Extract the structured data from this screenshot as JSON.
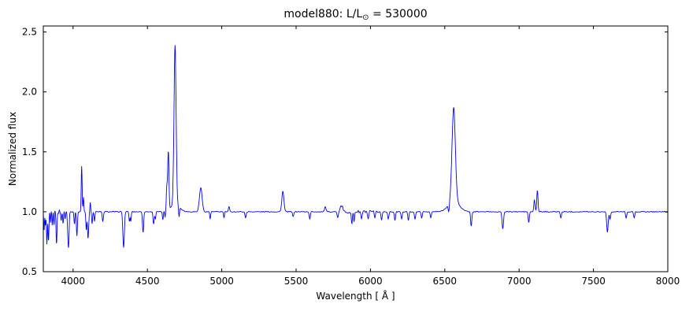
{
  "figure": {
    "title": {
      "prefix": "model880: L/L",
      "sub": "⊙",
      "suffix": " = 530000"
    },
    "background_color": "#ffffff",
    "frame_color": "#000000"
  },
  "chart_data": {
    "type": "line",
    "title": "model880: L/L⊙ = 530000",
    "xlabel": "Wavelength [ Å ]",
    "ylabel": "Normalized flux",
    "xlim": [
      3800,
      8000
    ],
    "ylim": [
      0.5,
      2.55
    ],
    "xticks": [
      "4000",
      "4500",
      "5000",
      "5500",
      "6000",
      "6500",
      "7000",
      "7500",
      "8000"
    ],
    "yticks": [
      "0.5",
      "1.0",
      "1.5",
      "2.0",
      "2.5"
    ],
    "grid": false,
    "legend": null,
    "series_color": "#0000ff",
    "continuum_level": 1.0,
    "sample_step_A": 2,
    "line_features": {
      "columns": [
        "center_A",
        "peak_delta_flux",
        "sigma_A"
      ],
      "rows": [
        [
          3805,
          -0.15,
          2.5
        ],
        [
          3814,
          -0.12,
          2.5
        ],
        [
          3824,
          -0.28,
          3
        ],
        [
          3835,
          -0.26,
          3
        ],
        [
          3848,
          -0.1,
          2.5
        ],
        [
          3860,
          -0.12,
          2.5
        ],
        [
          3872,
          -0.1,
          2.5
        ],
        [
          3889,
          -0.28,
          3
        ],
        [
          3920,
          -0.08,
          2.5
        ],
        [
          3933,
          -0.1,
          2.5
        ],
        [
          3947,
          -0.06,
          2.5
        ],
        [
          3964,
          -0.12,
          3
        ],
        [
          3970,
          -0.28,
          3.5
        ],
        [
          4009,
          -0.1,
          3
        ],
        [
          4026,
          -0.2,
          3.5
        ],
        [
          4058,
          0.38,
          3
        ],
        [
          4070,
          0.12,
          2.5
        ],
        [
          4089,
          -0.15,
          3
        ],
        [
          4101,
          -0.22,
          4
        ],
        [
          4116,
          0.08,
          2.5
        ],
        [
          4128,
          -0.1,
          3
        ],
        [
          4144,
          -0.08,
          3
        ],
        [
          4200,
          -0.08,
          4
        ],
        [
          4340,
          -0.3,
          5
        ],
        [
          4379,
          -0.08,
          3
        ],
        [
          4388,
          -0.08,
          3
        ],
        [
          4471,
          -0.17,
          4
        ],
        [
          4542,
          -0.1,
          4
        ],
        [
          4554,
          -0.06,
          3
        ],
        [
          4604,
          -0.07,
          3
        ],
        [
          4620,
          -0.05,
          3
        ],
        [
          4631,
          0.2,
          4
        ],
        [
          4641,
          0.48,
          4
        ],
        [
          4686,
          1.33,
          7
        ],
        [
          4686,
          0.06,
          30
        ],
        [
          4713,
          -0.08,
          3
        ],
        [
          4859,
          0.2,
          9
        ],
        [
          4922,
          -0.06,
          3
        ],
        [
          5015,
          -0.05,
          3
        ],
        [
          5049,
          0.04,
          4
        ],
        [
          5160,
          -0.05,
          4
        ],
        [
          5411,
          0.17,
          7
        ],
        [
          5480,
          -0.04,
          4
        ],
        [
          5592,
          -0.06,
          4
        ],
        [
          5696,
          0.04,
          5
        ],
        [
          5780,
          -0.05,
          4
        ],
        [
          5801,
          0.05,
          5
        ],
        [
          5812,
          0.04,
          4
        ],
        [
          5875,
          -0.1,
          4
        ],
        [
          5890,
          -0.08,
          3
        ],
        [
          5940,
          -0.06,
          4
        ],
        [
          5985,
          -0.07,
          4
        ],
        [
          6030,
          -0.06,
          4
        ],
        [
          6075,
          -0.07,
          4
        ],
        [
          6120,
          -0.06,
          4
        ],
        [
          6165,
          -0.07,
          4
        ],
        [
          6210,
          -0.06,
          4
        ],
        [
          6255,
          -0.07,
          4
        ],
        [
          6300,
          -0.06,
          4
        ],
        [
          6345,
          -0.05,
          4
        ],
        [
          6406,
          -0.05,
          4
        ],
        [
          6527,
          -0.07,
          4
        ],
        [
          6560,
          0.77,
          11
        ],
        [
          6560,
          0.1,
          35
        ],
        [
          6678,
          -0.12,
          4
        ],
        [
          6890,
          -0.14,
          5
        ],
        [
          7065,
          -0.09,
          4
        ],
        [
          7103,
          0.1,
          4
        ],
        [
          7123,
          0.18,
          4
        ],
        [
          7281,
          -0.05,
          4
        ],
        [
          7594,
          -0.17,
          5
        ],
        [
          7612,
          -0.06,
          4
        ],
        [
          7720,
          -0.05,
          4
        ],
        [
          7774,
          -0.05,
          4
        ]
      ]
    },
    "noise_regions": [
      {
        "from": 3800,
        "to": 3930,
        "amp": 0.012
      },
      {
        "from": 5820,
        "to": 6060,
        "amp": 0.008
      },
      {
        "from": 3800,
        "to": 8000,
        "amp": 0.0035
      }
    ]
  }
}
